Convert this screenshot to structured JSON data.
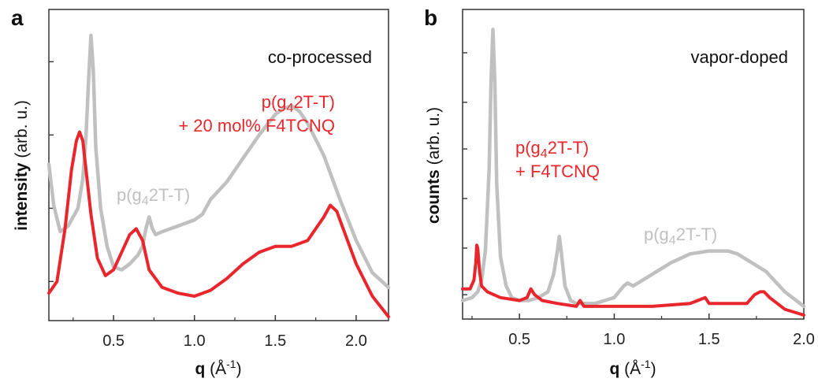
{
  "chart_data": [
    {
      "type": "line",
      "panel_label": "a",
      "annotation": "co-processed",
      "xlabel": {
        "bold": "q",
        "rest": " (Å",
        "sup": "-1",
        "end": ")"
      },
      "ylabel": {
        "bold": "intensity",
        "rest": " (arb. u.)"
      },
      "xlim": [
        0.1,
        2.2
      ],
      "ylim": [
        0,
        100
      ],
      "xticks": [
        "0.5",
        "1.0",
        "1.5",
        "2.0"
      ],
      "xtick_values": [
        0.5,
        1.0,
        1.5,
        2.0
      ],
      "yticks": [
        12,
        37,
        62,
        87
      ],
      "colors": {
        "pristine": "#c0c0c0",
        "doped": "#e8262c"
      },
      "series": [
        {
          "label_pre": "p(g",
          "label_sub": "4",
          "label_post": "2T-T)",
          "x": [
            0.1,
            0.13,
            0.17,
            0.22,
            0.28,
            0.31,
            0.33,
            0.345,
            0.36,
            0.375,
            0.39,
            0.42,
            0.46,
            0.5,
            0.55,
            0.6,
            0.65,
            0.68,
            0.7,
            0.72,
            0.74,
            0.76,
            0.8,
            0.9,
            1.0,
            1.05,
            1.08,
            1.1,
            1.2,
            1.3,
            1.4,
            1.5,
            1.55,
            1.6,
            1.65,
            1.7,
            1.8,
            1.9,
            2.0,
            2.1,
            2.2
          ],
          "y": [
            52,
            38,
            29,
            31,
            37,
            47,
            62,
            80,
            96,
            84,
            58,
            37,
            24,
            17,
            16,
            18,
            21,
            24,
            30,
            34,
            30,
            28,
            29,
            31,
            33,
            35,
            38,
            40,
            46,
            54,
            62,
            69,
            71,
            72,
            70,
            66,
            55,
            40,
            26,
            15,
            10
          ]
        },
        {
          "label_pre": "p(g",
          "label_sub": "4",
          "label_post": "2T-T)",
          "label_line2": "+ 20 mol% F4TCNQ",
          "x": [
            0.1,
            0.15,
            0.2,
            0.24,
            0.27,
            0.29,
            0.31,
            0.33,
            0.36,
            0.4,
            0.45,
            0.5,
            0.55,
            0.6,
            0.64,
            0.68,
            0.72,
            0.8,
            0.9,
            1.0,
            1.1,
            1.2,
            1.3,
            1.4,
            1.5,
            1.6,
            1.7,
            1.8,
            1.84,
            1.88,
            1.92,
            2.0,
            2.1,
            2.2
          ],
          "y": [
            8,
            12,
            30,
            50,
            60,
            63,
            60,
            50,
            35,
            20,
            14,
            16,
            22,
            28,
            30,
            26,
            16,
            10,
            8,
            7,
            9,
            13,
            18,
            22,
            24,
            24,
            26,
            34,
            38,
            36,
            30,
            18,
            7,
            0
          ]
        }
      ]
    },
    {
      "type": "line",
      "panel_label": "b",
      "annotation": "vapor-doped",
      "xlabel": {
        "bold": "q",
        "rest": " (Å",
        "sup": "-1",
        "end": ")"
      },
      "ylabel": {
        "bold": "counts",
        "rest": " (arb. u.)"
      },
      "xlim": [
        0.2,
        2.0
      ],
      "ylim": [
        0,
        100
      ],
      "xticks": [
        "0.5",
        "1.0",
        "1.5",
        "2.0"
      ],
      "xtick_values": [
        0.5,
        1.0,
        1.5,
        2.0
      ],
      "yticks": [
        7,
        23,
        40,
        57,
        73,
        90
      ],
      "colors": {
        "pristine": "#c0c0c0",
        "doped": "#e8262c"
      },
      "series": [
        {
          "label_pre": "p(g",
          "label_sub": "4",
          "label_post": "2T-T)",
          "x": [
            0.2,
            0.25,
            0.28,
            0.3,
            0.32,
            0.34,
            0.35,
            0.36,
            0.37,
            0.38,
            0.4,
            0.43,
            0.46,
            0.5,
            0.55,
            0.6,
            0.65,
            0.68,
            0.7,
            0.71,
            0.72,
            0.74,
            0.77,
            0.8,
            0.9,
            1.0,
            1.05,
            1.07,
            1.1,
            1.2,
            1.3,
            1.4,
            1.5,
            1.55,
            1.6,
            1.65,
            1.7,
            1.8,
            1.9,
            2.0
          ],
          "y": [
            5,
            6,
            8,
            12,
            22,
            50,
            80,
            98,
            80,
            45,
            20,
            10,
            6,
            5,
            5,
            6,
            8,
            14,
            22,
            27,
            22,
            10,
            5,
            4,
            4,
            6,
            10,
            11,
            10,
            14,
            18,
            21,
            22,
            22,
            22,
            21,
            19,
            15,
            8,
            3
          ]
        },
        {
          "label_pre": "p(g",
          "label_sub": "4",
          "label_post": "2T-T)",
          "label_line2": "+ F4TCNQ",
          "x": [
            0.2,
            0.24,
            0.26,
            0.27,
            0.275,
            0.28,
            0.29,
            0.3,
            0.33,
            0.4,
            0.5,
            0.54,
            0.56,
            0.58,
            0.62,
            0.7,
            0.8,
            0.82,
            0.84,
            0.9,
            1.0,
            1.2,
            1.4,
            1.48,
            1.5,
            1.6,
            1.7,
            1.74,
            1.77,
            1.79,
            1.82,
            1.86,
            1.9,
            2.0
          ],
          "y": [
            9,
            9,
            12,
            18,
            24,
            23,
            15,
            10,
            8,
            6,
            5,
            6,
            9,
            7,
            5,
            4,
            3,
            5,
            3,
            3,
            3,
            3,
            4,
            6,
            4,
            4,
            4,
            7,
            8,
            8,
            6,
            4,
            2,
            0
          ]
        }
      ]
    }
  ]
}
